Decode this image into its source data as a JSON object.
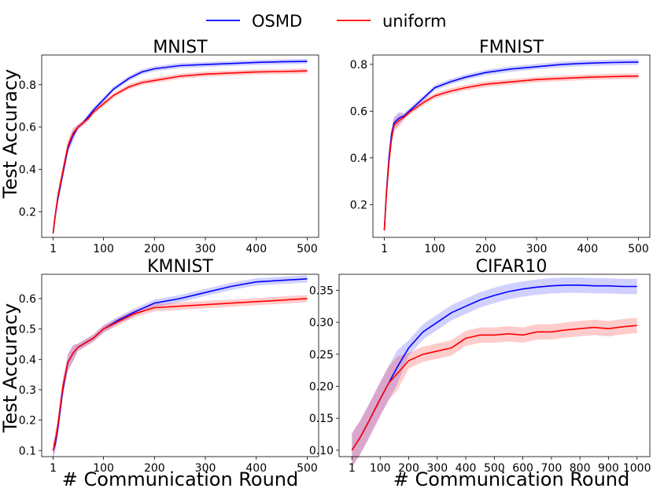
{
  "figure": {
    "legend": [
      {
        "name": "OSMD",
        "color": "#0000ff"
      },
      {
        "name": "uniform",
        "color": "#ff0000"
      }
    ],
    "ylabel": "Test Accuracy",
    "xlabel": "# Communication Round"
  },
  "chart_data": [
    {
      "type": "line",
      "title": "MNIST",
      "xlim": [
        1,
        500
      ],
      "ylim": [
        0.08,
        0.94
      ],
      "xticks": [
        1,
        100,
        200,
        300,
        400,
        500
      ],
      "yticks": [
        0.2,
        0.4,
        0.6,
        0.8
      ],
      "x": [
        1,
        5,
        10,
        20,
        30,
        40,
        50,
        60,
        70,
        80,
        100,
        120,
        150,
        175,
        200,
        250,
        300,
        350,
        400,
        450,
        500
      ],
      "series": [
        {
          "name": "OSMD",
          "color": "#0000ff",
          "values": [
            0.1,
            0.18,
            0.26,
            0.38,
            0.5,
            0.56,
            0.6,
            0.62,
            0.65,
            0.68,
            0.73,
            0.78,
            0.83,
            0.86,
            0.875,
            0.89,
            0.895,
            0.9,
            0.905,
            0.908,
            0.91
          ]
        },
        {
          "name": "uniform",
          "color": "#ff0000",
          "values": [
            0.1,
            0.18,
            0.27,
            0.39,
            0.51,
            0.57,
            0.6,
            0.62,
            0.64,
            0.67,
            0.71,
            0.75,
            0.79,
            0.81,
            0.82,
            0.84,
            0.85,
            0.855,
            0.86,
            0.862,
            0.865
          ]
        }
      ]
    },
    {
      "type": "line",
      "title": "FMNIST",
      "xlim": [
        1,
        500
      ],
      "ylim": [
        0.06,
        0.84
      ],
      "xticks": [
        1,
        100,
        200,
        300,
        400,
        500
      ],
      "yticks": [
        0.2,
        0.4,
        0.6,
        0.8
      ],
      "x": [
        1,
        5,
        10,
        15,
        20,
        30,
        40,
        50,
        60,
        80,
        100,
        130,
        160,
        200,
        250,
        300,
        350,
        400,
        450,
        500
      ],
      "series": [
        {
          "name": "OSMD",
          "color": "#0000ff",
          "values": [
            0.09,
            0.25,
            0.4,
            0.5,
            0.55,
            0.57,
            0.58,
            0.6,
            0.62,
            0.66,
            0.7,
            0.725,
            0.745,
            0.765,
            0.78,
            0.79,
            0.8,
            0.805,
            0.808,
            0.81
          ]
        },
        {
          "name": "uniform",
          "color": "#ff0000",
          "values": [
            0.09,
            0.24,
            0.38,
            0.48,
            0.54,
            0.56,
            0.575,
            0.595,
            0.61,
            0.64,
            0.665,
            0.685,
            0.7,
            0.715,
            0.725,
            0.735,
            0.74,
            0.745,
            0.748,
            0.75
          ]
        }
      ]
    },
    {
      "type": "line",
      "title": "KMNIST",
      "xlim": [
        1,
        500
      ],
      "ylim": [
        0.08,
        0.68
      ],
      "xticks": [
        1,
        100,
        200,
        300,
        400,
        500
      ],
      "yticks": [
        0.1,
        0.2,
        0.3,
        0.4,
        0.5,
        0.6
      ],
      "x": [
        1,
        5,
        10,
        20,
        30,
        40,
        50,
        60,
        80,
        100,
        130,
        160,
        200,
        250,
        300,
        350,
        400,
        450,
        500
      ],
      "series": [
        {
          "name": "OSMD",
          "color": "#0000ff",
          "values": [
            0.1,
            0.12,
            0.17,
            0.3,
            0.39,
            0.42,
            0.44,
            0.45,
            0.47,
            0.5,
            0.53,
            0.555,
            0.585,
            0.6,
            0.62,
            0.64,
            0.655,
            0.66,
            0.665
          ]
        },
        {
          "name": "uniform",
          "color": "#ff0000",
          "values": [
            0.1,
            0.13,
            0.18,
            0.31,
            0.39,
            0.42,
            0.44,
            0.45,
            0.47,
            0.5,
            0.525,
            0.55,
            0.57,
            0.575,
            0.58,
            0.585,
            0.59,
            0.595,
            0.6
          ]
        }
      ]
    },
    {
      "type": "line",
      "title": "CIFAR10",
      "xlim": [
        1,
        1000
      ],
      "ylim": [
        0.09,
        0.375
      ],
      "xticks": [
        1,
        100,
        200,
        300,
        400,
        500,
        600,
        700,
        800,
        900,
        1000
      ],
      "yticks": [
        0.1,
        0.15,
        0.2,
        0.25,
        0.3,
        0.35
      ],
      "x": [
        1,
        30,
        60,
        100,
        130,
        160,
        200,
        250,
        300,
        350,
        400,
        450,
        500,
        550,
        600,
        650,
        700,
        750,
        800,
        850,
        900,
        950,
        1000
      ],
      "series": [
        {
          "name": "OSMD",
          "color": "#0000ff",
          "values": [
            0.1,
            0.12,
            0.145,
            0.18,
            0.205,
            0.23,
            0.26,
            0.285,
            0.3,
            0.315,
            0.325,
            0.335,
            0.342,
            0.348,
            0.352,
            0.355,
            0.357,
            0.358,
            0.358,
            0.357,
            0.357,
            0.356,
            0.356
          ]
        },
        {
          "name": "uniform",
          "color": "#ff0000",
          "values": [
            0.1,
            0.12,
            0.145,
            0.18,
            0.205,
            0.22,
            0.24,
            0.25,
            0.255,
            0.26,
            0.275,
            0.28,
            0.28,
            0.282,
            0.28,
            0.285,
            0.285,
            0.288,
            0.29,
            0.292,
            0.29,
            0.293,
            0.295
          ]
        }
      ]
    }
  ]
}
